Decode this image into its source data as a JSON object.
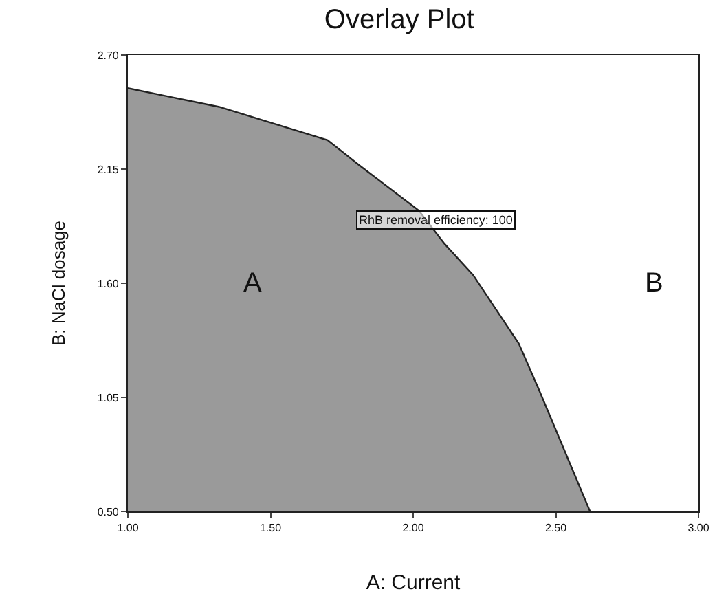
{
  "chart_data": {
    "type": "area",
    "title": "Overlay Plot",
    "xlabel": "A: Current",
    "ylabel": "B: NaCl dosage",
    "x": [
      1.0,
      1.32,
      1.7,
      1.81,
      2.02,
      2.11,
      2.21,
      2.37,
      2.44,
      2.62
    ],
    "series": [
      {
        "color": "#9a9a9a",
        "values": [
          2.54,
          2.45,
          2.29,
          2.17,
          1.95,
          1.79,
          1.64,
          1.31,
          1.09,
          0.5
        ]
      }
    ],
    "xlim": [
      1.0,
      3.0
    ],
    "ylim": [
      0.5,
      2.7
    ],
    "xticks": [
      {
        "value": 1.0,
        "label": "1.00"
      },
      {
        "value": 1.5,
        "label": "1.50"
      },
      {
        "value": 2.0,
        "label": "2.00"
      },
      {
        "value": 2.5,
        "label": "2.50"
      },
      {
        "value": 3.0,
        "label": "3.00"
      }
    ],
    "yticks": [
      {
        "value": 0.5,
        "label": "0.50"
      },
      {
        "value": 1.05,
        "label": "1.05"
      },
      {
        "value": 1.6,
        "label": "1.60"
      },
      {
        "value": 2.15,
        "label": "2.15"
      },
      {
        "value": 2.7,
        "label": "2.70"
      }
    ],
    "annotations": [
      "A",
      "B",
      "RhB removal efficiency: 100"
    ]
  }
}
